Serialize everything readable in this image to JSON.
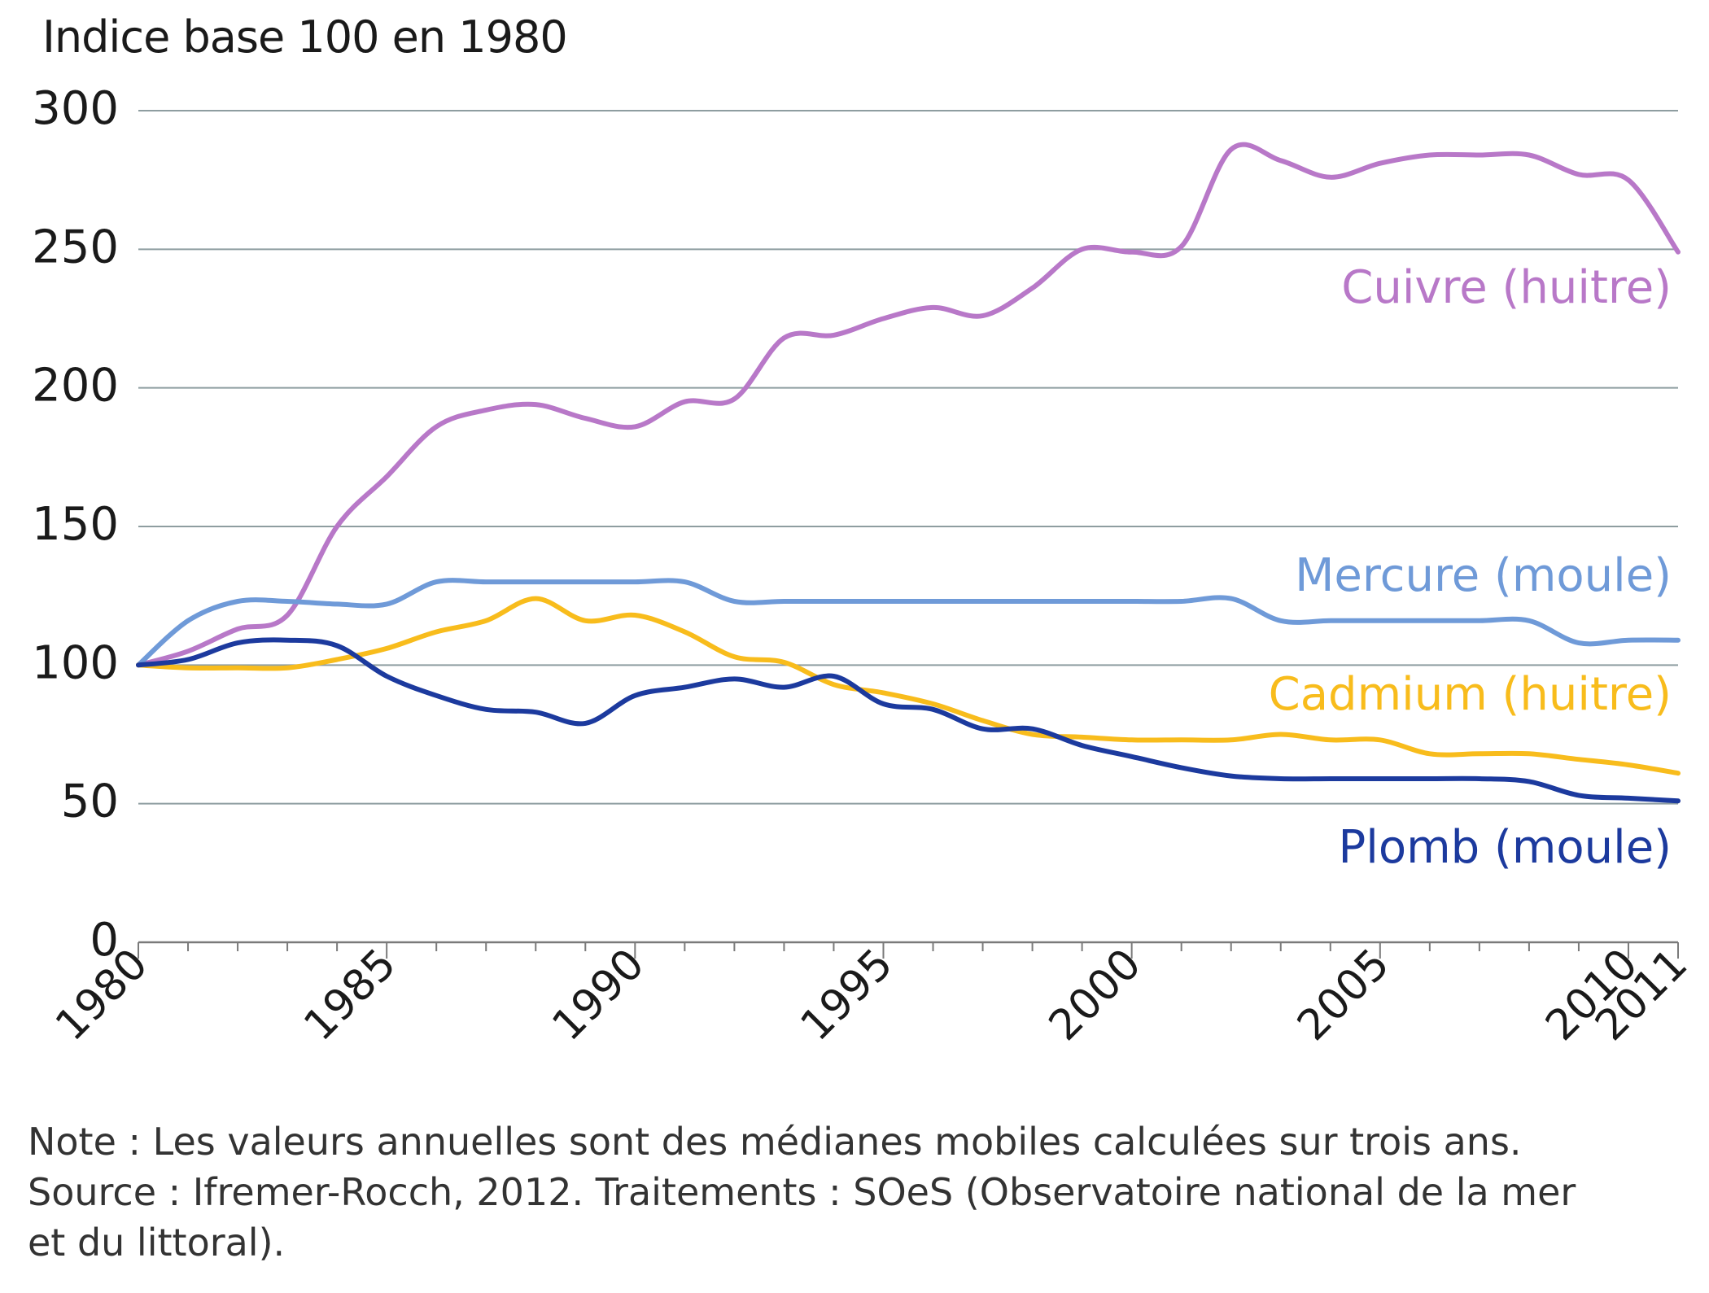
{
  "chart_data": {
    "type": "line",
    "ytitle": "Indice base 100 en 1980",
    "ylim": [
      0,
      300
    ],
    "yticks": [
      0,
      50,
      100,
      150,
      200,
      250,
      300
    ],
    "xlim": [
      1980,
      2011
    ],
    "xticks": [
      1980,
      1985,
      1990,
      1995,
      2000,
      2005,
      2010,
      2011
    ],
    "grid": true,
    "x": [
      1980,
      1981,
      1982,
      1983,
      1984,
      1985,
      1986,
      1987,
      1988,
      1989,
      1990,
      1991,
      1992,
      1993,
      1994,
      1995,
      1996,
      1997,
      1998,
      1999,
      2000,
      2001,
      2002,
      2003,
      2004,
      2005,
      2006,
      2007,
      2008,
      2009,
      2010,
      2011
    ],
    "series": [
      {
        "name": "Cuivre (huitre)",
        "color": "#b878c8",
        "values": [
          100,
          105,
          113,
          118,
          150,
          168,
          186,
          192,
          194,
          189,
          186,
          195,
          196,
          218,
          219,
          225,
          229,
          226,
          236,
          250,
          249,
          251,
          286,
          282,
          276,
          281,
          284,
          284,
          284,
          277,
          275,
          249
        ]
      },
      {
        "name": "Mercure (moule)",
        "color": "#6f9ad8",
        "values": [
          100,
          116,
          123,
          123,
          122,
          122,
          130,
          130,
          130,
          130,
          130,
          130,
          123,
          123,
          123,
          123,
          123,
          123,
          123,
          123,
          123,
          123,
          124,
          116,
          116,
          116,
          116,
          116,
          116,
          108,
          109,
          109
        ]
      },
      {
        "name": "Cadmium (huitre)",
        "color": "#f8bc1c",
        "values": [
          100,
          99,
          99,
          99,
          102,
          106,
          112,
          116,
          124,
          116,
          118,
          112,
          103,
          101,
          93,
          90,
          86,
          80,
          75,
          74,
          73,
          73,
          73,
          75,
          73,
          73,
          68,
          68,
          68,
          66,
          64,
          61
        ]
      },
      {
        "name": "Plomb (moule)",
        "color": "#1c3a9e",
        "values": [
          100,
          102,
          108,
          109,
          107,
          96,
          89,
          84,
          83,
          79,
          89,
          92,
          95,
          92,
          96,
          86,
          84,
          77,
          77,
          71,
          67,
          63,
          60,
          59,
          59,
          59,
          59,
          59,
          58,
          53,
          52,
          51
        ]
      }
    ]
  },
  "notes": {
    "line1": "Note : Les valeurs annuelles sont des médianes mobiles calculées sur trois ans.",
    "line2": "Source : Ifremer-Rocch, 2012. Traitements : SOeS (Observatoire national de la mer",
    "line3": "et du littoral)."
  }
}
